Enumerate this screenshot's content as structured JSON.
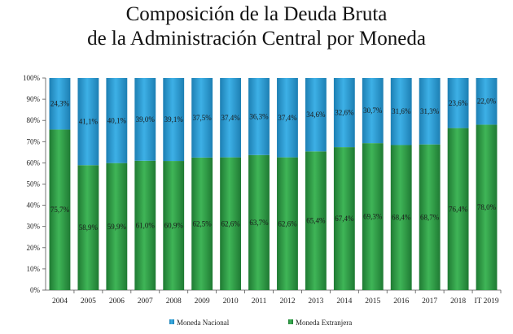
{
  "title_line1": "Composición de la Deuda Bruta",
  "title_line2": "de la Administración Central por Moneda",
  "colors": {
    "nacional": "#2e9fd6",
    "nacional_dark": "#1d7fb3",
    "extranjera": "#2f9a45",
    "extranjera_dark": "#1f7a33"
  },
  "chart_data": {
    "type": "bar",
    "stacked": true,
    "categories": [
      "2004",
      "2005",
      "2006",
      "2007",
      "2008",
      "2009",
      "2010",
      "2011",
      "2012",
      "2013",
      "2014",
      "2015",
      "2016",
      "2017",
      "2018",
      "IT 2019"
    ],
    "series": [
      {
        "name": "Moneda Extranjera",
        "values": [
          75.7,
          58.9,
          59.9,
          61.0,
          60.9,
          62.5,
          62.6,
          63.7,
          62.6,
          65.4,
          67.4,
          69.3,
          68.4,
          68.7,
          76.4,
          78.0
        ],
        "labels": [
          "75,7%",
          "58,9%",
          "59,9%",
          "61,0%",
          "60,9%",
          "62,5%",
          "62,6%",
          "63,7%",
          "62,6%",
          "65,4%",
          "67,4%",
          "69,3%",
          "68,4%",
          "68,7%",
          "76,4%",
          "78,0%"
        ]
      },
      {
        "name": "Moneda Nacional",
        "values": [
          24.3,
          41.1,
          40.1,
          39.0,
          39.1,
          37.5,
          37.4,
          36.3,
          37.4,
          34.6,
          32.6,
          30.7,
          31.6,
          31.3,
          23.6,
          22.0
        ],
        "labels": [
          "24,3%",
          "41,1%",
          "40,1%",
          "39,0%",
          "39,1%",
          "37,5%",
          "37,4%",
          "36,3%",
          "37,4%",
          "34,6%",
          "32,6%",
          "30,7%",
          "31,6%",
          "31,3%",
          "23,6%",
          "22,0%"
        ]
      }
    ],
    "yticks": [
      "0%",
      "10%",
      "20%",
      "30%",
      "40%",
      "50%",
      "60%",
      "70%",
      "80%",
      "90%",
      "100%"
    ],
    "ylim": [
      0,
      100
    ],
    "legend": [
      "Moneda Nacional",
      "Moneda Extranjera"
    ],
    "legend_position": "bottom"
  }
}
